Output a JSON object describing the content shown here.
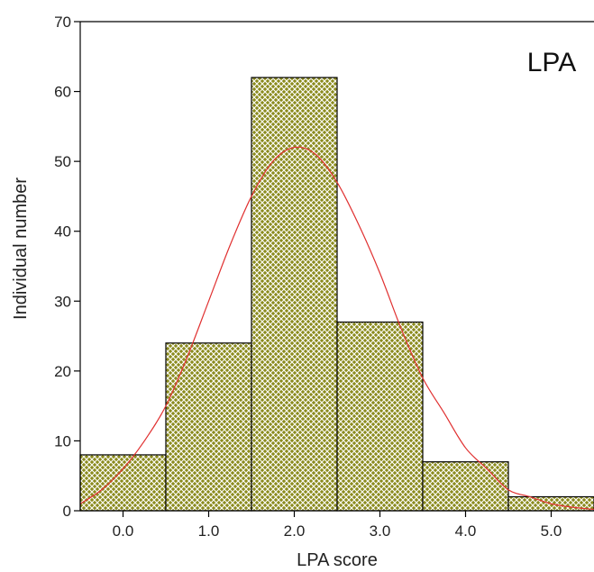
{
  "chart_data": {
    "type": "bar",
    "panel_label": "LPA",
    "xlabel": "LPA score",
    "ylabel": "Individual number",
    "categories": [
      "0.0",
      "1.0",
      "2.0",
      "3.0",
      "4.0",
      "5.0"
    ],
    "values": [
      8,
      24,
      62,
      27,
      7,
      2
    ],
    "ylim": [
      0,
      70
    ],
    "yticks": [
      0,
      10,
      20,
      30,
      40,
      50,
      60,
      70
    ],
    "xlim": [
      -0.5,
      5.5
    ],
    "normal_curve": {
      "x": [
        -0.5,
        -0.25,
        0.0,
        0.25,
        0.5,
        0.75,
        1.0,
        1.25,
        1.5,
        1.75,
        2.0,
        2.25,
        2.5,
        2.75,
        3.0,
        3.25,
        3.5,
        3.75,
        4.0,
        4.25,
        4.5,
        4.75,
        5.0,
        5.25,
        5.5
      ],
      "y": [
        1,
        3,
        6,
        10,
        15,
        22,
        30,
        38,
        45,
        50,
        52,
        51,
        47,
        41,
        34,
        26,
        19,
        14,
        9,
        6,
        3,
        2,
        1,
        0.5,
        0.2
      ]
    },
    "bar_color": "#8b8b1e",
    "hatch_color": "#ffffff",
    "curve_color": "#e03030",
    "grid": false
  }
}
